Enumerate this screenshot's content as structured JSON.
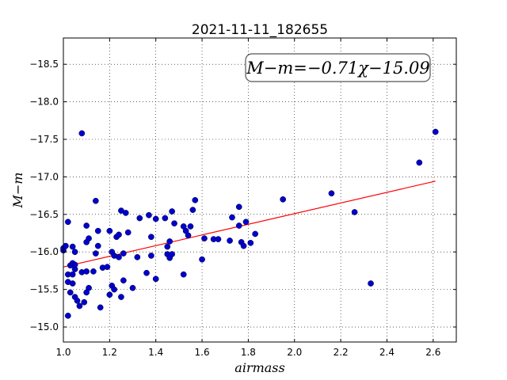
{
  "chart_data": {
    "type": "scatter",
    "title": "2021-11-11_182655",
    "xlabel": "airmass",
    "ylabel": "M−m",
    "xlim": [
      1.0,
      2.7
    ],
    "ylim": [
      -18.85,
      -14.8
    ],
    "y_inverted": true,
    "grid": true,
    "grid_style": "dotted",
    "xticks": [
      "1.0",
      "1.2",
      "1.4",
      "1.6",
      "1.8",
      "2.0",
      "2.2",
      "2.4",
      "2.6"
    ],
    "yticks": [
      "−15.0",
      "−15.5",
      "−16.0",
      "−16.5",
      "−17.0",
      "−17.5",
      "−18.0",
      "−18.5"
    ],
    "annotation": "M−m=−0.71χ−15.09",
    "fit": {
      "slope": -0.71,
      "intercept": -15.09,
      "x_range": [
        1.0,
        2.61
      ],
      "color": "#ff0000"
    },
    "marker_color": "#0000cc",
    "points": [
      [
        1.0,
        -16.02
      ],
      [
        1.0,
        -16.05
      ],
      [
        1.01,
        -16.08
      ],
      [
        1.02,
        -15.15
      ],
      [
        1.02,
        -15.6
      ],
      [
        1.02,
        -15.7
      ],
      [
        1.02,
        -16.4
      ],
      [
        1.03,
        -15.46
      ],
      [
        1.03,
        -15.82
      ],
      [
        1.04,
        -15.58
      ],
      [
        1.04,
        -15.7
      ],
      [
        1.04,
        -15.85
      ],
      [
        1.04,
        -16.07
      ],
      [
        1.05,
        -15.4
      ],
      [
        1.05,
        -15.77
      ],
      [
        1.05,
        -15.83
      ],
      [
        1.05,
        -16.0
      ],
      [
        1.06,
        -15.35
      ],
      [
        1.07,
        -15.28
      ],
      [
        1.08,
        -15.73
      ],
      [
        1.08,
        -17.58
      ],
      [
        1.09,
        -15.33
      ],
      [
        1.1,
        -15.46
      ],
      [
        1.1,
        -15.74
      ],
      [
        1.1,
        -16.13
      ],
      [
        1.1,
        -16.35
      ],
      [
        1.11,
        -15.52
      ],
      [
        1.11,
        -16.18
      ],
      [
        1.13,
        -15.74
      ],
      [
        1.14,
        -15.98
      ],
      [
        1.14,
        -16.68
      ],
      [
        1.15,
        -16.08
      ],
      [
        1.15,
        -16.28
      ],
      [
        1.16,
        -15.26
      ],
      [
        1.17,
        -15.79
      ],
      [
        1.19,
        -15.8
      ],
      [
        1.2,
        -15.43
      ],
      [
        1.2,
        -16.28
      ],
      [
        1.21,
        -15.55
      ],
      [
        1.21,
        -16.0
      ],
      [
        1.22,
        -15.5
      ],
      [
        1.22,
        -15.95
      ],
      [
        1.23,
        -16.2
      ],
      [
        1.24,
        -15.93
      ],
      [
        1.24,
        -16.23
      ],
      [
        1.25,
        -15.4
      ],
      [
        1.25,
        -16.55
      ],
      [
        1.26,
        -15.62
      ],
      [
        1.26,
        -15.98
      ],
      [
        1.27,
        -16.52
      ],
      [
        1.28,
        -16.26
      ],
      [
        1.3,
        -15.52
      ],
      [
        1.32,
        -15.93
      ],
      [
        1.33,
        -16.45
      ],
      [
        1.36,
        -15.72
      ],
      [
        1.37,
        -16.49
      ],
      [
        1.38,
        -15.95
      ],
      [
        1.38,
        -16.2
      ],
      [
        1.4,
        -15.64
      ],
      [
        1.4,
        -16.44
      ],
      [
        1.44,
        -16.45
      ],
      [
        1.45,
        -15.97
      ],
      [
        1.45,
        -16.07
      ],
      [
        1.46,
        -15.92
      ],
      [
        1.46,
        -16.14
      ],
      [
        1.47,
        -15.97
      ],
      [
        1.47,
        -16.54
      ],
      [
        1.48,
        -16.38
      ],
      [
        1.52,
        -15.7
      ],
      [
        1.52,
        -16.34
      ],
      [
        1.53,
        -16.28
      ],
      [
        1.54,
        -16.22
      ],
      [
        1.55,
        -16.34
      ],
      [
        1.56,
        -16.56
      ],
      [
        1.57,
        -16.69
      ],
      [
        1.6,
        -15.9
      ],
      [
        1.61,
        -16.18
      ],
      [
        1.65,
        -16.17
      ],
      [
        1.67,
        -16.17
      ],
      [
        1.72,
        -16.15
      ],
      [
        1.73,
        -16.46
      ],
      [
        1.76,
        -16.35
      ],
      [
        1.76,
        -16.6
      ],
      [
        1.77,
        -16.13
      ],
      [
        1.78,
        -16.08
      ],
      [
        1.79,
        -16.4
      ],
      [
        1.81,
        -16.12
      ],
      [
        1.83,
        -16.24
      ],
      [
        1.95,
        -16.7
      ],
      [
        2.16,
        -16.78
      ],
      [
        2.26,
        -16.53
      ],
      [
        2.33,
        -15.58
      ],
      [
        2.54,
        -17.19
      ],
      [
        2.61,
        -17.6
      ]
    ]
  }
}
